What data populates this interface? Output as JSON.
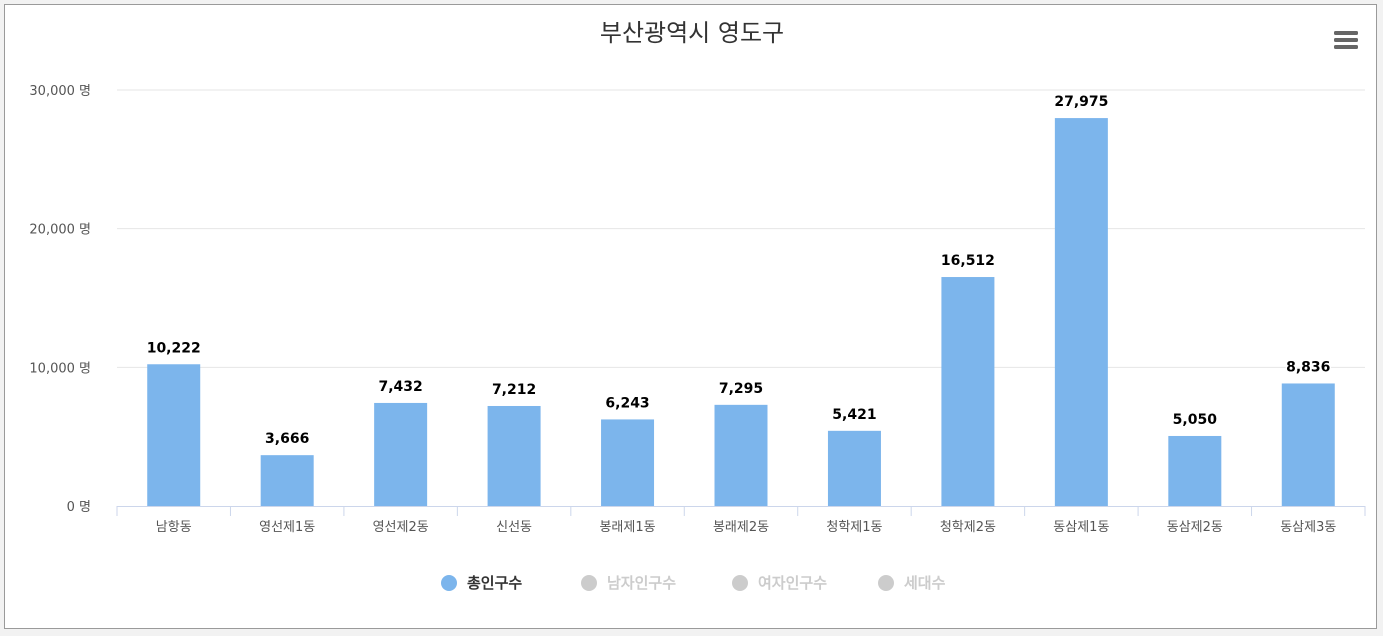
{
  "chart_data": {
    "type": "bar",
    "title": "부산광역시 영도구",
    "categories": [
      "남항동",
      "영선제1동",
      "영선제2동",
      "신선동",
      "봉래제1동",
      "봉래제2동",
      "청학제1동",
      "청학제2동",
      "동삼제1동",
      "동삼제2동",
      "동삼제3동"
    ],
    "series": [
      {
        "name": "총인구수",
        "values": [
          10222,
          3666,
          7432,
          7212,
          6243,
          7295,
          5421,
          16512,
          27975,
          5050,
          8836
        ],
        "visible": true
      }
    ],
    "value_labels": [
      "10,222",
      "3,666",
      "7,432",
      "7,212",
      "6,243",
      "7,295",
      "5,421",
      "16,512",
      "27,975",
      "5,050",
      "8,836"
    ],
    "ylim": [
      0,
      30000
    ],
    "yticks": [
      0,
      10000,
      20000,
      30000
    ],
    "ytick_labels": [
      "0 명",
      "10,000 명",
      "20,000 명",
      "30,000 명"
    ],
    "xlabel": "",
    "ylabel": "",
    "grid": true,
    "legend_position": "bottom-center",
    "bar_color": "#7cb5ec"
  },
  "legend": [
    {
      "label": "총인구수",
      "active": true,
      "color": "#7cb5ec"
    },
    {
      "label": "남자인구수",
      "active": false,
      "color": "#cccccc"
    },
    {
      "label": "여자인구수",
      "active": false,
      "color": "#cccccc"
    },
    {
      "label": "세대수",
      "active": false,
      "color": "#cccccc"
    }
  ],
  "menu_icon": "hamburger-menu-icon",
  "colors": {
    "grid": "#e6e6e6",
    "axis": "#ccd6eb",
    "legend_active_text": "#333333",
    "legend_inactive_text": "#cccccc"
  }
}
